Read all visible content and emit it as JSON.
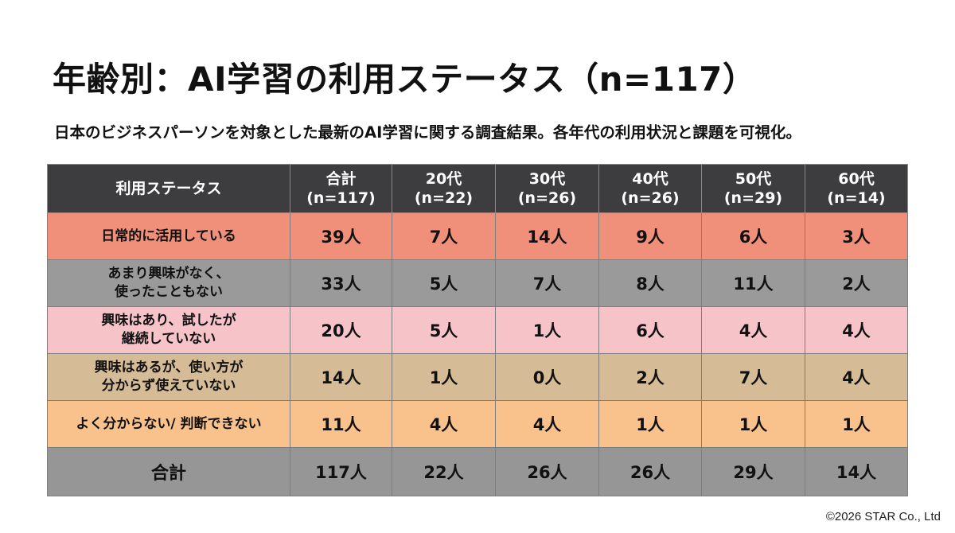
{
  "title": "年齢別：AI学習の利用ステータス（n=117）",
  "subtitle": "日本のビジネスパーソンを対象とした最新のAI学習に関する調査結果。各年代の利用状況と課題を可視化。",
  "copyright": "©2026 STAR Co., Ltd",
  "colors": {
    "header_bg": "#3d3d3f",
    "row_bgs": [
      "#f0907a",
      "#9a9a9a",
      "#f6c3c8",
      "#d6bc96",
      "#f9c18b"
    ],
    "total_bg": "#969696"
  },
  "chart_data": {
    "type": "table",
    "header": {
      "label": "利用ステータス",
      "columns": [
        [
          "合計",
          "(n=117)"
        ],
        [
          "20代",
          "(n=22)"
        ],
        [
          "30代",
          "(n=26)"
        ],
        [
          "40代",
          "(n=26)"
        ],
        [
          "50代",
          "(n=29)"
        ],
        [
          "60代",
          "(n=14)"
        ]
      ]
    },
    "rows": [
      {
        "label": [
          "日常的に活用している"
        ],
        "values": [
          "39人",
          "7人",
          "14人",
          "9人",
          "6人",
          "3人"
        ]
      },
      {
        "label": [
          "あまり興味がなく、",
          "使ったこともない"
        ],
        "values": [
          "33人",
          "5人",
          "7人",
          "8人",
          "11人",
          "2人"
        ]
      },
      {
        "label": [
          "興味はあり、試したが",
          "継続していない"
        ],
        "values": [
          "20人",
          "5人",
          "1人",
          "6人",
          "4人",
          "4人"
        ]
      },
      {
        "label": [
          "興味はあるが、使い方が",
          "分からず使えていない"
        ],
        "values": [
          "14人",
          "1人",
          "0人",
          "2人",
          "7人",
          "4人"
        ]
      },
      {
        "label": [
          "よく分からない/ 判断できない"
        ],
        "values": [
          "11人",
          "4人",
          "4人",
          "1人",
          "1人",
          "1人"
        ]
      }
    ],
    "total": {
      "label": "合計",
      "values": [
        "117人",
        "22人",
        "26人",
        "26人",
        "29人",
        "14人"
      ]
    }
  }
}
